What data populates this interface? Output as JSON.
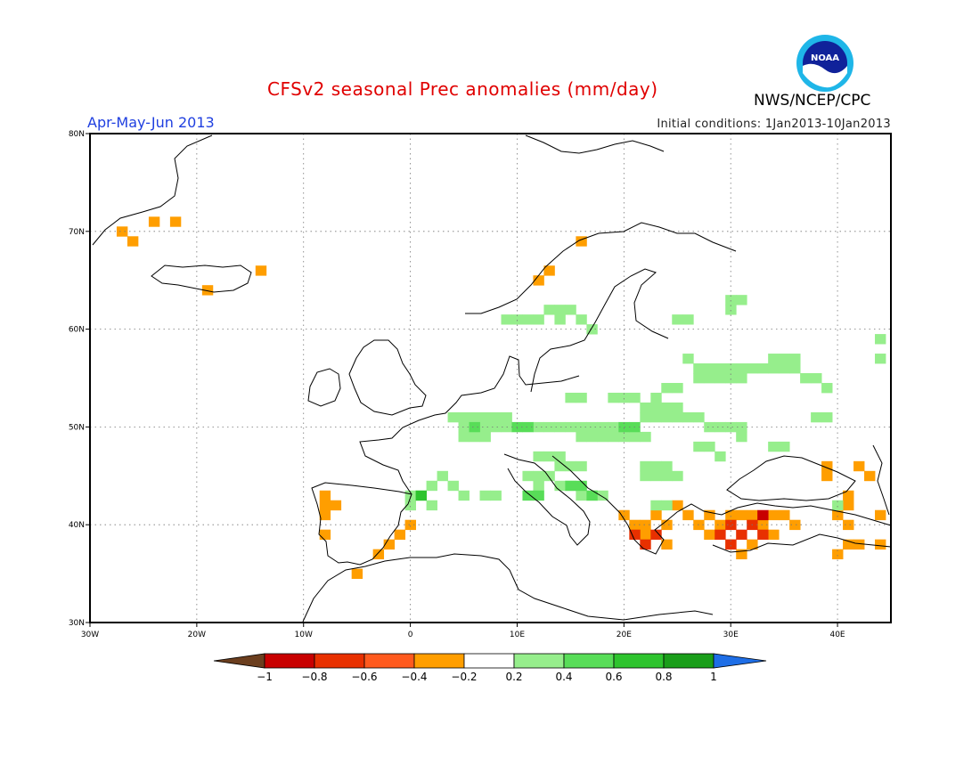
{
  "title": "CFSv2 seasonal Prec anomalies (mm/day)",
  "season": "Apr-May-Jun 2013",
  "initial_conditions": "Initial conditions: 1Jan2013-10Jan2013",
  "agency": "NWS/NCEP/CPC",
  "logo_text": "NOAA",
  "map": {
    "lon_range": [
      -30,
      45
    ],
    "lat_range": [
      30,
      80
    ],
    "lon_ticks": [
      {
        "value": -30,
        "label": "30W"
      },
      {
        "value": -20,
        "label": "20W"
      },
      {
        "value": -10,
        "label": "10W"
      },
      {
        "value": 0,
        "label": "0"
      },
      {
        "value": 10,
        "label": "10E"
      },
      {
        "value": 20,
        "label": "20E"
      },
      {
        "value": 30,
        "label": "30E"
      },
      {
        "value": 40,
        "label": "40E"
      }
    ],
    "lat_ticks": [
      {
        "value": 30,
        "label": "30N"
      },
      {
        "value": 40,
        "label": "40N"
      },
      {
        "value": 50,
        "label": "50N"
      },
      {
        "value": 60,
        "label": "60N"
      },
      {
        "value": 70,
        "label": "70N"
      },
      {
        "value": 80,
        "label": "80N"
      }
    ],
    "grid": "dotted"
  },
  "colorbar": {
    "labels": [
      "-1",
      "-0.8",
      "-0.6",
      "-0.4",
      "-0.2",
      "0.2",
      "0.4",
      "0.6",
      "0.8",
      "1"
    ],
    "colors": [
      "#6b3e1e",
      "#c80000",
      "#e83000",
      "#ff5a1e",
      "#ff9e00",
      "#ffffff",
      "#96ee8c",
      "#58dd58",
      "#2ec42e",
      "#1a9e1a",
      "#1e6ee6"
    ]
  },
  "anomaly_regions": [
    {
      "name": "greenland-coast",
      "level": "-0.4",
      "cells": [
        [
          -27,
          70
        ],
        [
          -26,
          69
        ],
        [
          -24,
          71
        ],
        [
          -22,
          71
        ]
      ]
    },
    {
      "name": "iceland-east",
      "level": "-0.4",
      "cells": [
        [
          -14,
          66
        ]
      ]
    },
    {
      "name": "iceland-south",
      "level": "-0.4",
      "cells": [
        [
          -19,
          64
        ]
      ]
    },
    {
      "name": "norway-coast",
      "level": "-0.4",
      "cells": [
        [
          12,
          65
        ],
        [
          13,
          66
        ],
        [
          16,
          69
        ]
      ]
    },
    {
      "name": "iberia-west",
      "level": "-0.4",
      "cells": [
        [
          -8,
          43
        ],
        [
          -8,
          42
        ],
        [
          -7,
          42
        ],
        [
          -8,
          41
        ],
        [
          -8,
          39
        ]
      ]
    },
    {
      "name": "iberia-east",
      "level": "-0.4",
      "cells": [
        [
          0,
          40
        ],
        [
          -1,
          39
        ],
        [
          -2,
          38
        ],
        [
          -3,
          37
        ],
        [
          -5,
          35
        ]
      ]
    },
    {
      "name": "greece",
      "level": "-0.4",
      "cells": [
        [
          20,
          41
        ],
        [
          21,
          40
        ],
        [
          22,
          40
        ],
        [
          23,
          41
        ],
        [
          24,
          40
        ],
        [
          22,
          39
        ],
        [
          24,
          38
        ],
        [
          25,
          42
        ],
        [
          26,
          41
        ]
      ]
    },
    {
      "name": "greece-core",
      "level": "-0.6",
      "cells": [
        [
          21,
          39
        ],
        [
          22,
          38
        ],
        [
          23,
          39
        ]
      ]
    },
    {
      "name": "anatolia",
      "level": "-0.4",
      "cells": [
        [
          28,
          41
        ],
        [
          29,
          40
        ],
        [
          30,
          41
        ],
        [
          31,
          41
        ],
        [
          32,
          41
        ],
        [
          33,
          40
        ],
        [
          34,
          41
        ],
        [
          35,
          41
        ],
        [
          36,
          40
        ],
        [
          30,
          38
        ],
        [
          31,
          37
        ],
        [
          32,
          38
        ],
        [
          34,
          39
        ],
        [
          28,
          39
        ],
        [
          27,
          40
        ]
      ]
    },
    {
      "name": "anatolia-core",
      "level": "-0.6",
      "cells": [
        [
          29,
          39
        ],
        [
          30,
          40
        ],
        [
          31,
          39
        ],
        [
          32,
          40
        ],
        [
          33,
          39
        ],
        [
          30,
          38
        ]
      ]
    },
    {
      "name": "anatolia-peak",
      "level": "-0.8",
      "cells": [
        [
          33,
          41
        ]
      ]
    },
    {
      "name": "caucasus-east",
      "level": "-0.4",
      "cells": [
        [
          39,
          46
        ],
        [
          39,
          45
        ],
        [
          42,
          46
        ],
        [
          43,
          45
        ],
        [
          41,
          43
        ],
        [
          41,
          42
        ],
        [
          40,
          41
        ],
        [
          41,
          40
        ],
        [
          42,
          38
        ],
        [
          41,
          38
        ],
        [
          40,
          37
        ],
        [
          44,
          41
        ],
        [
          44,
          38
        ]
      ]
    },
    {
      "name": "scandinavia-south",
      "level": "0.2",
      "cells": [
        [
          9,
          61
        ],
        [
          10,
          61
        ],
        [
          11,
          61
        ],
        [
          12,
          61
        ],
        [
          13,
          62
        ],
        [
          14,
          62
        ],
        [
          15,
          62
        ],
        [
          16,
          61
        ],
        [
          17,
          60
        ],
        [
          14,
          61
        ],
        [
          25,
          61
        ],
        [
          26,
          61
        ],
        [
          30,
          62
        ],
        [
          30,
          63
        ],
        [
          31,
          63
        ]
      ]
    },
    {
      "name": "east-europe",
      "level": "0.2",
      "cells": [
        [
          26,
          57
        ],
        [
          27,
          56
        ],
        [
          28,
          56
        ],
        [
          29,
          56
        ],
        [
          30,
          56
        ],
        [
          31,
          56
        ],
        [
          32,
          56
        ],
        [
          27,
          55
        ],
        [
          28,
          55
        ],
        [
          29,
          55
        ],
        [
          30,
          55
        ],
        [
          31,
          55
        ],
        [
          33,
          56
        ],
        [
          34,
          56
        ],
        [
          35,
          56
        ],
        [
          36,
          56
        ],
        [
          34,
          57
        ],
        [
          35,
          57
        ],
        [
          36,
          57
        ],
        [
          37,
          55
        ],
        [
          38,
          55
        ],
        [
          39,
          54
        ],
        [
          24,
          54
        ],
        [
          25,
          54
        ],
        [
          23,
          53
        ],
        [
          19,
          53
        ],
        [
          20,
          53
        ],
        [
          21,
          53
        ],
        [
          22,
          52
        ],
        [
          23,
          52
        ],
        [
          24,
          52
        ],
        [
          25,
          52
        ],
        [
          22,
          51
        ],
        [
          23,
          51
        ],
        [
          24,
          51
        ],
        [
          25,
          51
        ],
        [
          26,
          51
        ],
        [
          27,
          51
        ],
        [
          28,
          50
        ],
        [
          29,
          50
        ],
        [
          30,
          50
        ],
        [
          31,
          50
        ],
        [
          31,
          49
        ],
        [
          27,
          48
        ],
        [
          28,
          48
        ],
        [
          34,
          48
        ],
        [
          35,
          48
        ],
        [
          29,
          47
        ],
        [
          15,
          53
        ],
        [
          16,
          53
        ],
        [
          44,
          59
        ],
        [
          44,
          57
        ]
      ]
    },
    {
      "name": "central-europe",
      "level": "0.2",
      "cells": [
        [
          4,
          51
        ],
        [
          5,
          51
        ],
        [
          6,
          51
        ],
        [
          7,
          51
        ],
        [
          8,
          51
        ],
        [
          9,
          51
        ],
        [
          5,
          50
        ],
        [
          6,
          50
        ],
        [
          7,
          50
        ],
        [
          8,
          50
        ],
        [
          9,
          50
        ],
        [
          5,
          49
        ],
        [
          6,
          49
        ],
        [
          7,
          49
        ],
        [
          12,
          50
        ],
        [
          13,
          50
        ],
        [
          14,
          50
        ],
        [
          15,
          50
        ],
        [
          16,
          50
        ],
        [
          17,
          50
        ],
        [
          18,
          50
        ],
        [
          19,
          50
        ],
        [
          20,
          49
        ],
        [
          21,
          49
        ],
        [
          22,
          49
        ],
        [
          16,
          49
        ],
        [
          17,
          49
        ],
        [
          18,
          49
        ],
        [
          19,
          49
        ],
        [
          12,
          47
        ],
        [
          13,
          47
        ],
        [
          14,
          47
        ],
        [
          22,
          46
        ],
        [
          23,
          46
        ],
        [
          24,
          46
        ],
        [
          22,
          45
        ],
        [
          23,
          45
        ],
        [
          24,
          45
        ],
        [
          25,
          45
        ],
        [
          14,
          46
        ],
        [
          15,
          46
        ],
        [
          16,
          46
        ],
        [
          12,
          45
        ],
        [
          13,
          45
        ],
        [
          14,
          44
        ],
        [
          15,
          44
        ],
        [
          16,
          43
        ],
        [
          17,
          43
        ],
        [
          18,
          43
        ],
        [
          23,
          42
        ],
        [
          24,
          42
        ],
        [
          11,
          45
        ],
        [
          12,
          44
        ],
        [
          3,
          45
        ],
        [
          2,
          44
        ],
        [
          4,
          44
        ],
        [
          5,
          43
        ],
        [
          7,
          43
        ],
        [
          8,
          43
        ],
        [
          0,
          43
        ],
        [
          1,
          43
        ],
        [
          0,
          42
        ],
        [
          2,
          42
        ],
        [
          38,
          51
        ],
        [
          39,
          51
        ],
        [
          40,
          42
        ]
      ]
    },
    {
      "name": "central-europe-mid",
      "level": "0.4",
      "cells": [
        [
          6,
          50
        ],
        [
          10,
          50
        ],
        [
          11,
          50
        ],
        [
          15,
          44
        ],
        [
          16,
          44
        ],
        [
          11,
          43
        ],
        [
          12,
          43
        ],
        [
          17,
          43
        ],
        [
          20,
          50
        ],
        [
          21,
          50
        ]
      ]
    },
    {
      "name": "central-europe-strong",
      "level": "0.6",
      "cells": [
        [
          1,
          43
        ]
      ]
    }
  ]
}
